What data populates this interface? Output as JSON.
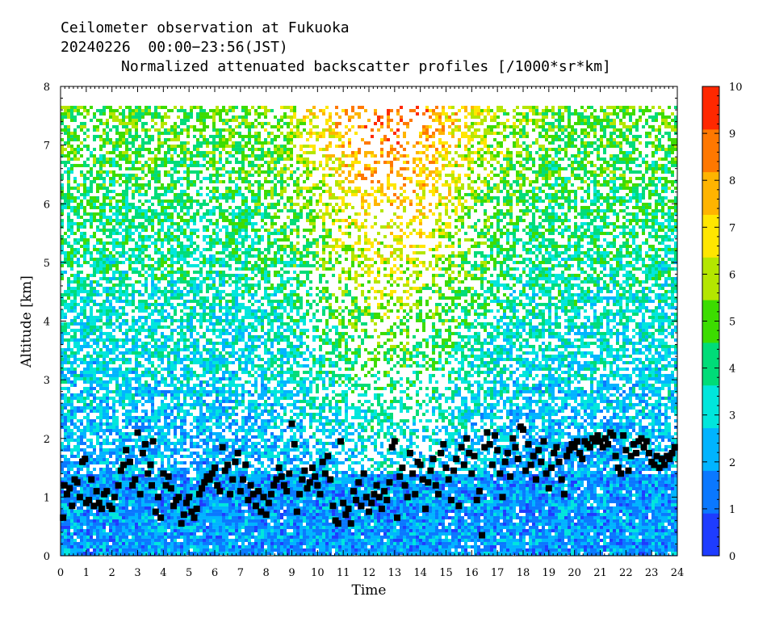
{
  "chart_data": {
    "type": "heatmap",
    "title": "Ceilometer observation at Fukuoka",
    "subtitle": "20240226  00:00−23:56(JST)",
    "product": "Normalized attenuated backscatter profiles [/1000*sr*km]",
    "xlabel": "Time",
    "ylabel": "Altitude [km]",
    "xlim": [
      0,
      24
    ],
    "ylim": [
      0,
      8
    ],
    "x_ticks": [
      "0",
      "1",
      "2",
      "3",
      "4",
      "5",
      "6",
      "7",
      "8",
      "9",
      "10",
      "11",
      "12",
      "13",
      "14",
      "15",
      "16",
      "17",
      "18",
      "19",
      "20",
      "21",
      "22",
      "23",
      "24"
    ],
    "y_ticks": [
      "0",
      "1",
      "2",
      "3",
      "4",
      "5",
      "6",
      "7",
      "8"
    ],
    "colorbar": {
      "range": [
        0,
        10
      ],
      "ticks": [
        "0",
        "1",
        "2",
        "3",
        "4",
        "5",
        "6",
        "7",
        "8",
        "9",
        "10"
      ],
      "colors": [
        "#1e3cff",
        "#0a78ff",
        "#00b4ff",
        "#00e6dc",
        "#00dc78",
        "#3cdc00",
        "#b4e600",
        "#ffe600",
        "#ffb400",
        "#ff7800",
        "#ff2800"
      ]
    },
    "data_top_altitude": 7.67,
    "cloud_base_height_series": {
      "name": "",
      "marker": "square",
      "color": "#000000",
      "points": [
        [
          0.1,
          0.65
        ],
        [
          0.15,
          1.2
        ],
        [
          0.25,
          1.05
        ],
        [
          0.35,
          1.15
        ],
        [
          0.45,
          0.85
        ],
        [
          0.55,
          1.3
        ],
        [
          0.65,
          1.25
        ],
        [
          0.75,
          1.0
        ],
        [
          0.85,
          1.6
        ],
        [
          0.95,
          1.65
        ],
        [
          1.0,
          0.9
        ],
        [
          1.1,
          0.95
        ],
        [
          1.2,
          1.3
        ],
        [
          1.3,
          0.85
        ],
        [
          1.4,
          1.1
        ],
        [
          1.5,
          0.9
        ],
        [
          1.6,
          0.8
        ],
        [
          1.7,
          1.05
        ],
        [
          1.8,
          1.1
        ],
        [
          1.9,
          0.85
        ],
        [
          2.0,
          0.8
        ],
        [
          2.1,
          1.0
        ],
        [
          2.25,
          1.2
        ],
        [
          2.35,
          1.45
        ],
        [
          2.45,
          1.55
        ],
        [
          2.55,
          1.8
        ],
        [
          2.7,
          1.6
        ],
        [
          2.8,
          1.2
        ],
        [
          2.9,
          1.3
        ],
        [
          3.0,
          2.1
        ],
        [
          3.1,
          1.05
        ],
        [
          3.2,
          1.75
        ],
        [
          3.3,
          1.9
        ],
        [
          3.4,
          1.4
        ],
        [
          3.5,
          1.55
        ],
        [
          3.55,
          1.2
        ],
        [
          3.6,
          1.95
        ],
        [
          3.7,
          0.75
        ],
        [
          3.8,
          1.0
        ],
        [
          3.9,
          0.65
        ],
        [
          4.0,
          1.4
        ],
        [
          4.1,
          1.2
        ],
        [
          4.2,
          1.35
        ],
        [
          4.3,
          1.15
        ],
        [
          4.4,
          0.85
        ],
        [
          4.5,
          0.95
        ],
        [
          4.6,
          1.0
        ],
        [
          4.7,
          0.55
        ],
        [
          4.8,
          0.7
        ],
        [
          4.9,
          0.9
        ],
        [
          5.0,
          1.0
        ],
        [
          5.1,
          0.75
        ],
        [
          5.2,
          0.65
        ],
        [
          5.3,
          0.8
        ],
        [
          5.4,
          1.05
        ],
        [
          5.5,
          1.15
        ],
        [
          5.6,
          1.25
        ],
        [
          5.7,
          1.35
        ],
        [
          5.8,
          1.3
        ],
        [
          5.9,
          1.4
        ],
        [
          6.0,
          1.5
        ],
        [
          6.1,
          1.2
        ],
        [
          6.2,
          1.1
        ],
        [
          6.3,
          1.85
        ],
        [
          6.4,
          1.45
        ],
        [
          6.5,
          1.55
        ],
        [
          6.6,
          1.05
        ],
        [
          6.7,
          1.3
        ],
        [
          6.8,
          1.6
        ],
        [
          6.9,
          1.75
        ],
        [
          7.0,
          1.1
        ],
        [
          7.1,
          1.3
        ],
        [
          7.2,
          1.55
        ],
        [
          7.3,
          0.95
        ],
        [
          7.4,
          1.2
        ],
        [
          7.5,
          1.05
        ],
        [
          7.6,
          0.85
        ],
        [
          7.7,
          1.1
        ],
        [
          7.8,
          0.75
        ],
        [
          7.9,
          1.0
        ],
        [
          8.0,
          0.7
        ],
        [
          8.1,
          0.9
        ],
        [
          8.2,
          1.05
        ],
        [
          8.3,
          1.2
        ],
        [
          8.4,
          1.3
        ],
        [
          8.5,
          1.5
        ],
        [
          8.6,
          1.35
        ],
        [
          8.7,
          1.2
        ],
        [
          8.8,
          1.1
        ],
        [
          8.9,
          1.4
        ],
        [
          9.0,
          2.25
        ],
        [
          9.1,
          1.9
        ],
        [
          9.2,
          0.75
        ],
        [
          9.3,
          1.05
        ],
        [
          9.4,
          1.3
        ],
        [
          9.5,
          1.45
        ],
        [
          9.6,
          1.15
        ],
        [
          9.7,
          1.25
        ],
        [
          9.8,
          1.5
        ],
        [
          9.9,
          1.35
        ],
        [
          10.0,
          1.2
        ],
        [
          10.1,
          1.05
        ],
        [
          10.2,
          1.6
        ],
        [
          10.3,
          1.4
        ],
        [
          10.4,
          1.7
        ],
        [
          10.5,
          1.3
        ],
        [
          10.6,
          0.85
        ],
        [
          10.7,
          0.6
        ],
        [
          10.8,
          0.55
        ],
        [
          10.9,
          1.95
        ],
        [
          11.0,
          0.9
        ],
        [
          11.1,
          0.7
        ],
        [
          11.2,
          0.8
        ],
        [
          11.3,
          0.55
        ],
        [
          11.4,
          1.1
        ],
        [
          11.5,
          0.95
        ],
        [
          11.6,
          1.25
        ],
        [
          11.7,
          0.85
        ],
        [
          11.8,
          1.4
        ],
        [
          11.9,
          1.0
        ],
        [
          12.0,
          0.75
        ],
        [
          12.1,
          0.9
        ],
        [
          12.2,
          1.05
        ],
        [
          12.3,
          1.2
        ],
        [
          12.4,
          1.0
        ],
        [
          12.5,
          0.8
        ],
        [
          12.6,
          1.1
        ],
        [
          12.7,
          0.95
        ],
        [
          12.8,
          1.25
        ],
        [
          12.9,
          1.85
        ],
        [
          13.0,
          1.95
        ],
        [
          13.1,
          0.65
        ],
        [
          13.2,
          1.35
        ],
        [
          13.3,
          1.5
        ],
        [
          13.4,
          1.2
        ],
        [
          13.5,
          1.0
        ],
        [
          13.6,
          1.75
        ],
        [
          13.7,
          1.4
        ],
        [
          13.8,
          1.05
        ],
        [
          13.9,
          1.6
        ],
        [
          14.0,
          1.55
        ],
        [
          14.1,
          1.3
        ],
        [
          14.2,
          0.8
        ],
        [
          14.3,
          1.25
        ],
        [
          14.4,
          1.45
        ],
        [
          14.5,
          1.65
        ],
        [
          14.6,
          1.2
        ],
        [
          14.7,
          1.05
        ],
        [
          14.8,
          1.75
        ],
        [
          14.9,
          1.9
        ],
        [
          15.0,
          1.5
        ],
        [
          15.1,
          1.3
        ],
        [
          15.2,
          0.95
        ],
        [
          15.3,
          1.45
        ],
        [
          15.4,
          1.65
        ],
        [
          15.5,
          0.85
        ],
        [
          15.6,
          1.85
        ],
        [
          15.7,
          1.55
        ],
        [
          15.8,
          2.0
        ],
        [
          15.9,
          1.75
        ],
        [
          16.0,
          1.4
        ],
        [
          16.1,
          1.7
        ],
        [
          16.2,
          0.95
        ],
        [
          16.3,
          1.1
        ],
        [
          16.4,
          0.35
        ],
        [
          16.5,
          1.85
        ],
        [
          16.6,
          2.1
        ],
        [
          16.7,
          1.9
        ],
        [
          16.8,
          1.55
        ],
        [
          16.9,
          2.05
        ],
        [
          17.0,
          1.8
        ],
        [
          17.1,
          1.4
        ],
        [
          17.2,
          1.0
        ],
        [
          17.3,
          1.6
        ],
        [
          17.4,
          1.75
        ],
        [
          17.5,
          1.35
        ],
        [
          17.6,
          2.0
        ],
        [
          17.7,
          1.85
        ],
        [
          17.8,
          1.65
        ],
        [
          17.9,
          2.2
        ],
        [
          18.0,
          2.15
        ],
        [
          18.1,
          1.45
        ],
        [
          18.2,
          1.9
        ],
        [
          18.3,
          1.55
        ],
        [
          18.4,
          1.7
        ],
        [
          18.5,
          1.3
        ],
        [
          18.6,
          1.8
        ],
        [
          18.7,
          1.6
        ],
        [
          18.8,
          1.95
        ],
        [
          18.9,
          1.4
        ],
        [
          19.0,
          1.15
        ],
        [
          19.1,
          1.5
        ],
        [
          19.2,
          1.75
        ],
        [
          19.3,
          1.85
        ],
        [
          19.4,
          1.6
        ],
        [
          19.5,
          1.3
        ],
        [
          19.6,
          1.05
        ],
        [
          19.7,
          1.7
        ],
        [
          19.8,
          1.8
        ],
        [
          19.9,
          1.9
        ],
        [
          20.0,
          1.85
        ],
        [
          20.1,
          1.95
        ],
        [
          20.2,
          1.75
        ],
        [
          20.3,
          1.65
        ],
        [
          20.4,
          1.95
        ],
        [
          20.5,
          1.9
        ],
        [
          20.6,
          1.85
        ],
        [
          20.7,
          2.0
        ],
        [
          20.8,
          1.95
        ],
        [
          20.9,
          2.05
        ],
        [
          21.0,
          1.95
        ],
        [
          21.1,
          1.85
        ],
        [
          21.2,
          2.0
        ],
        [
          21.3,
          1.9
        ],
        [
          21.4,
          2.1
        ],
        [
          21.5,
          2.05
        ],
        [
          21.6,
          1.7
        ],
        [
          21.7,
          1.5
        ],
        [
          21.8,
          1.4
        ],
        [
          21.9,
          2.05
        ],
        [
          22.0,
          1.8
        ],
        [
          22.1,
          1.45
        ],
        [
          22.2,
          1.7
        ],
        [
          22.3,
          1.9
        ],
        [
          22.4,
          1.75
        ],
        [
          22.5,
          1.95
        ],
        [
          22.6,
          2.0
        ],
        [
          22.7,
          1.85
        ],
        [
          22.8,
          1.95
        ],
        [
          22.9,
          1.75
        ],
        [
          23.0,
          1.6
        ],
        [
          23.1,
          1.55
        ],
        [
          23.2,
          1.7
        ],
        [
          23.3,
          1.5
        ],
        [
          23.4,
          1.65
        ],
        [
          23.5,
          1.55
        ],
        [
          23.6,
          1.7
        ],
        [
          23.7,
          1.65
        ],
        [
          23.8,
          1.75
        ],
        [
          23.9,
          1.85
        ]
      ]
    }
  }
}
